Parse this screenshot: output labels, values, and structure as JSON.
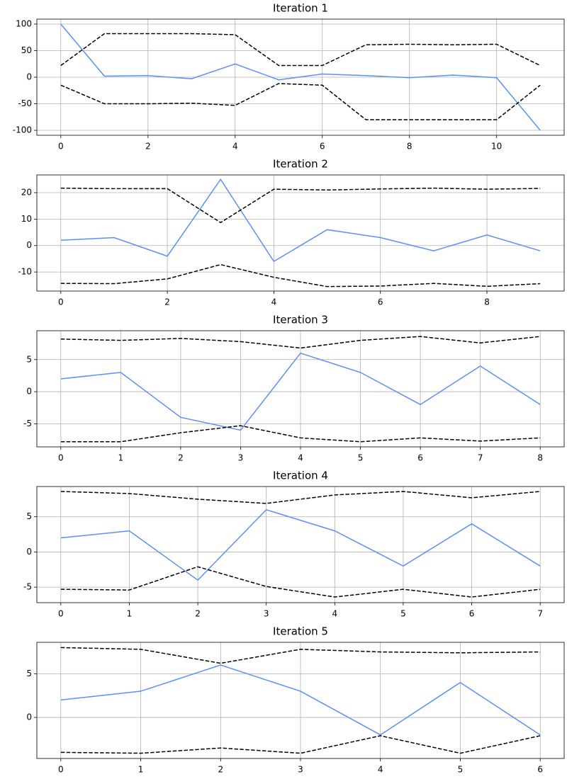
{
  "chart_data": [
    {
      "type": "line",
      "title": "Iteration 1",
      "x": [
        0,
        1,
        2,
        3,
        4,
        5,
        6,
        7,
        8,
        9,
        10,
        11
      ],
      "series": [
        {
          "color": "#5b8ff9",
          "linestyle": "solid",
          "values": [
            100,
            2,
            3,
            -3,
            25,
            -5,
            6,
            3,
            -1,
            4,
            -1,
            -100
          ]
        },
        {
          "color": "#000000",
          "linestyle": "dashed",
          "values": [
            22,
            82,
            82,
            82,
            80,
            22,
            22,
            61,
            62,
            61,
            62,
            22
          ]
        },
        {
          "color": "#000000",
          "linestyle": "dashed",
          "values": [
            -15,
            -50,
            -50,
            -49,
            -53,
            -12,
            -15,
            -80,
            -80,
            -80,
            -80,
            -15
          ]
        }
      ],
      "xlim": [
        -0.55,
        11.55
      ],
      "ylim": [
        -109.3,
        109.3
      ],
      "xticks": [
        0,
        2,
        4,
        6,
        8,
        10
      ],
      "yticks": [
        -100,
        -50,
        0,
        50,
        100
      ],
      "grid": true
    },
    {
      "type": "line",
      "title": "Iteration 2",
      "x": [
        0,
        1,
        2,
        3,
        4,
        5,
        6,
        7,
        8,
        9
      ],
      "series": [
        {
          "color": "#5b8ff9",
          "linestyle": "solid",
          "values": [
            2,
            3,
            -4,
            25,
            -6,
            6,
            3,
            -2,
            4,
            -2
          ]
        },
        {
          "color": "#000000",
          "linestyle": "dashed",
          "values": [
            21.7,
            21.5,
            21.5,
            8.7,
            21.3,
            21,
            21.4,
            21.7,
            21.3,
            21.6
          ]
        },
        {
          "color": "#000000",
          "linestyle": "dashed",
          "values": [
            -14.3,
            -14.4,
            -12.6,
            -7.2,
            -12,
            -15.5,
            -15.3,
            -14.3,
            -15.4,
            -14.4
          ]
        }
      ],
      "xlim": [
        -0.45,
        9.45
      ],
      "ylim": [
        -17.2,
        26.7
      ],
      "xticks": [
        0,
        2,
        4,
        6,
        8
      ],
      "yticks": [
        -10,
        0,
        10,
        20
      ],
      "grid": true
    },
    {
      "type": "line",
      "title": "Iteration 3",
      "x": [
        0,
        1,
        2,
        3,
        4,
        5,
        6,
        7,
        8
      ],
      "series": [
        {
          "color": "#5b8ff9",
          "linestyle": "solid",
          "values": [
            2,
            3,
            -4,
            -6,
            6,
            3,
            -2,
            4,
            -2
          ]
        },
        {
          "color": "#000000",
          "linestyle": "dashed",
          "values": [
            8.2,
            8,
            8.3,
            7.8,
            6.8,
            8,
            8.6,
            7.6,
            8.6
          ]
        },
        {
          "color": "#000000",
          "linestyle": "dashed",
          "values": [
            -7.8,
            -7.8,
            -6.4,
            -5.3,
            -7.2,
            -7.8,
            -7.2,
            -7.7,
            -7.2
          ]
        }
      ],
      "xlim": [
        -0.4,
        8.4
      ],
      "ylim": [
        -8.6,
        9.5
      ],
      "xticks": [
        0,
        1,
        2,
        3,
        4,
        5,
        6,
        7,
        8
      ],
      "yticks": [
        -5,
        0,
        5
      ],
      "grid": true
    },
    {
      "type": "line",
      "title": "Iteration 4",
      "x": [
        0,
        1,
        2,
        3,
        4,
        5,
        6,
        7
      ],
      "series": [
        {
          "color": "#5b8ff9",
          "linestyle": "solid",
          "values": [
            2,
            3,
            -4,
            6,
            3,
            -2,
            4,
            -2
          ]
        },
        {
          "color": "#000000",
          "linestyle": "dashed",
          "values": [
            8.6,
            8.3,
            7.5,
            6.9,
            8.1,
            8.6,
            7.7,
            8.6
          ]
        },
        {
          "color": "#000000",
          "linestyle": "dashed",
          "values": [
            -5.3,
            -5.4,
            -2.1,
            -4.9,
            -6.4,
            -5.3,
            -6.4,
            -5.3
          ]
        }
      ],
      "xlim": [
        -0.35,
        7.35
      ],
      "ylim": [
        -7.2,
        9.3
      ],
      "xticks": [
        0,
        1,
        2,
        3,
        4,
        5,
        6,
        7
      ],
      "yticks": [
        -5,
        0,
        5
      ],
      "grid": true
    },
    {
      "type": "line",
      "title": "Iteration 5",
      "x": [
        0,
        1,
        2,
        3,
        4,
        5,
        6
      ],
      "series": [
        {
          "color": "#5b8ff9",
          "linestyle": "solid",
          "values": [
            2,
            3,
            6,
            3,
            -2,
            4,
            -2
          ]
        },
        {
          "color": "#000000",
          "linestyle": "dashed",
          "values": [
            8,
            7.8,
            6.2,
            7.8,
            7.5,
            7.4,
            7.5
          ]
        },
        {
          "color": "#000000",
          "linestyle": "dashed",
          "values": [
            -4,
            -4.1,
            -3.5,
            -4.1,
            -2.1,
            -4.1,
            -2.1
          ]
        }
      ],
      "xlim": [
        -0.3,
        6.3
      ],
      "ylim": [
        -4.7,
        8.6
      ],
      "xticks": [
        0,
        1,
        2,
        3,
        4,
        5,
        6
      ],
      "yticks": [
        0,
        5
      ],
      "grid": true
    }
  ]
}
